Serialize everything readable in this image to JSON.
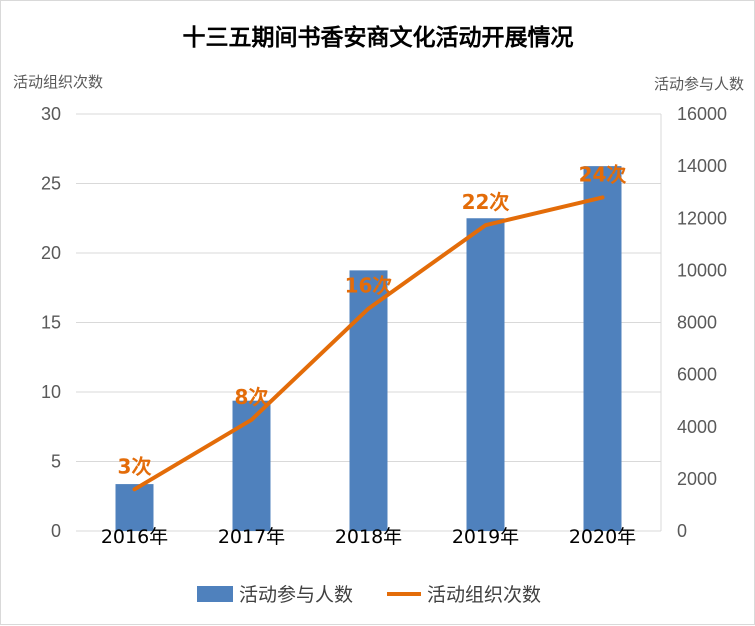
{
  "chart_data": {
    "type": "bar",
    "title": "十三五期间书香安商文化活动开展情况",
    "categories": [
      "2016年",
      "2017年",
      "2018年",
      "2019年",
      "2020年"
    ],
    "series": [
      {
        "name": "活动参与人数",
        "type": "bar",
        "axis": "right",
        "color": "#4f81bd",
        "values": [
          1800,
          5000,
          10000,
          12000,
          14000
        ]
      },
      {
        "name": "活动组织次数",
        "type": "line",
        "axis": "left",
        "color": "#e36c09",
        "values": [
          3,
          8,
          16,
          22,
          24
        ],
        "data_labels": [
          "3次",
          "8次",
          "16次",
          "22次",
          "24次"
        ]
      }
    ],
    "y_left": {
      "label": "活动组织次数",
      "ylim": [
        0,
        30
      ],
      "ticks": [
        0,
        5,
        10,
        15,
        20,
        25,
        30
      ]
    },
    "y_right": {
      "label": "活动参与人数",
      "ylim": [
        0,
        16000
      ],
      "ticks": [
        0,
        2000,
        4000,
        6000,
        8000,
        10000,
        12000,
        14000,
        16000
      ]
    },
    "grid": true,
    "legend_position": "bottom"
  }
}
